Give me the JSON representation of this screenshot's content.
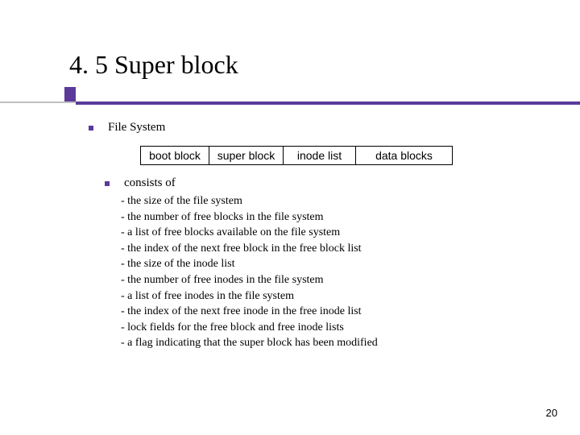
{
  "title": "4. 5 Super block",
  "accent_color": "#5b3a9b",
  "line_color": "#bfbfbf",
  "bullet1": "File System",
  "diagram": {
    "cells": [
      "boot block",
      "super block",
      "inode list",
      "data blocks"
    ],
    "widths": [
      86,
      92,
      90,
      120
    ]
  },
  "bullet2": "consists of",
  "list": [
    "- the size of the file system",
    "- the number of  free blocks in the file system",
    "- a list of free blocks available on the file system",
    "- the index of the next free block in the free block list",
    "- the size of the inode list",
    "- the number of free inodes in the file system",
    "- a list of free inodes in the file system",
    "- the index of the next free inode in the free inode list",
    "- lock fields for the free block and free inode lists",
    "- a flag indicating that the super block has been modified"
  ],
  "page_number": "20"
}
